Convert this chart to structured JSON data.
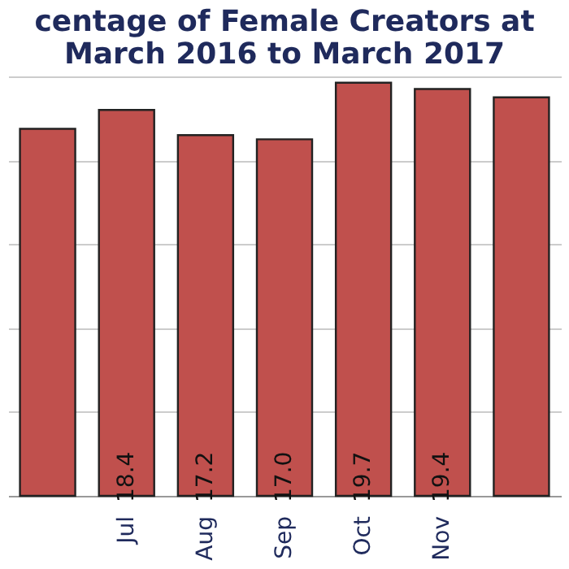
{
  "chart_data": {
    "type": "bar",
    "title": [
      "centage of Female Creators at",
      "March 2016 to March 2017"
    ],
    "categories": [
      null,
      "Jul",
      "Aug",
      "Sep",
      "Oct",
      "Nov",
      null
    ],
    "values": [
      17.5,
      18.4,
      17.2,
      17.0,
      19.7,
      19.4,
      19.0
    ],
    "value_labels": [
      null,
      "18.4",
      "17.2",
      "17.0",
      "19.7",
      "19.4",
      null
    ],
    "color": "#c0504d",
    "ylim": [
      0,
      20
    ],
    "yticks": [
      {
        "value": 0,
        "label": null
      },
      {
        "value": 4,
        "label": null
      },
      {
        "value": 8,
        "label": null
      },
      {
        "value": 12,
        "label": null
      },
      {
        "value": 16,
        "label": null
      },
      {
        "value": 20,
        "label": null
      }
    ],
    "grid": "y",
    "tick_labels": "x"
  }
}
